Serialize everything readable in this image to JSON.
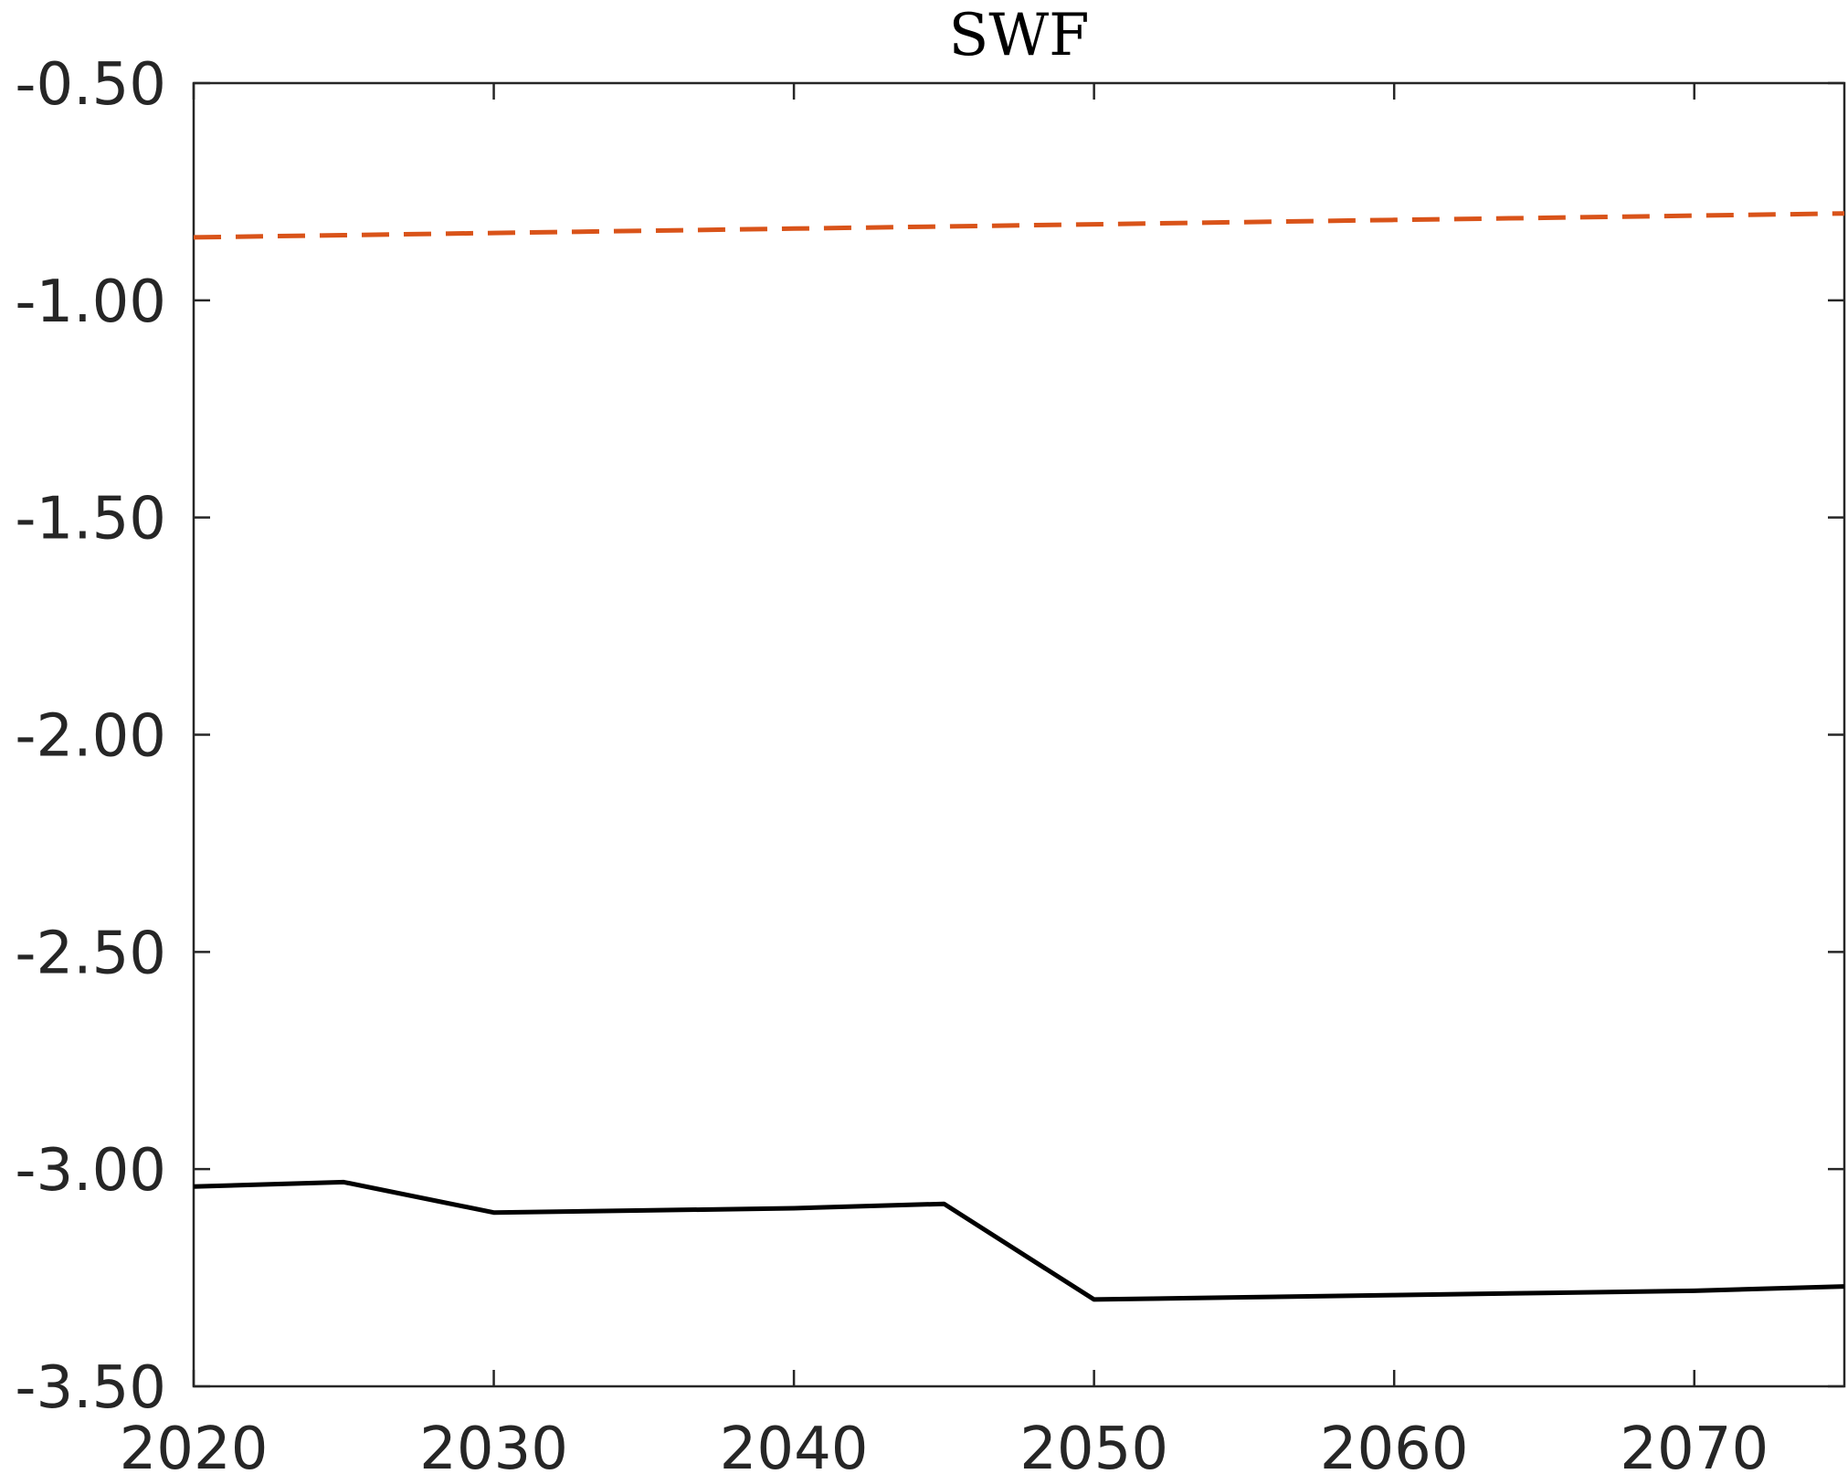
{
  "chart_data": {
    "type": "line",
    "title": "SWF",
    "xlabel": "",
    "ylabel": "",
    "xlim": [
      2020,
      2075
    ],
    "ylim": [
      -3.5,
      -0.5
    ],
    "x_ticks": [
      2020,
      2030,
      2040,
      2050,
      2060,
      2070
    ],
    "x_tick_labels": [
      "2020",
      "2030",
      "2040",
      "2050",
      "2060",
      "2070"
    ],
    "y_ticks": [
      -0.5,
      -1.0,
      -1.5,
      -2.0,
      -2.5,
      -3.0,
      -3.5
    ],
    "y_tick_labels": [
      "-0.50",
      "-1.00",
      "-1.50",
      "-2.00",
      "-2.50",
      "-3.00",
      "-3.50"
    ],
    "grid": false,
    "series": [
      {
        "color": "#000000",
        "style": "solid",
        "x": [
          2020,
          2025,
          2030,
          2035,
          2040,
          2045,
          2050,
          2055,
          2060,
          2065,
          2070,
          2075
        ],
        "y": [
          -3.04,
          -3.03,
          -3.1,
          -3.095,
          -3.09,
          -3.08,
          -3.3,
          -3.295,
          -3.29,
          -3.285,
          -3.28,
          -3.27
        ]
      },
      {
        "color": "#D95319",
        "style": "dashed",
        "x": [
          2020,
          2025,
          2030,
          2035,
          2040,
          2045,
          2050,
          2055,
          2060,
          2065,
          2070,
          2075
        ],
        "y": [
          -0.855,
          -0.85,
          -0.845,
          -0.84,
          -0.835,
          -0.83,
          -0.825,
          -0.82,
          -0.815,
          -0.81,
          -0.805,
          -0.8
        ]
      }
    ]
  }
}
